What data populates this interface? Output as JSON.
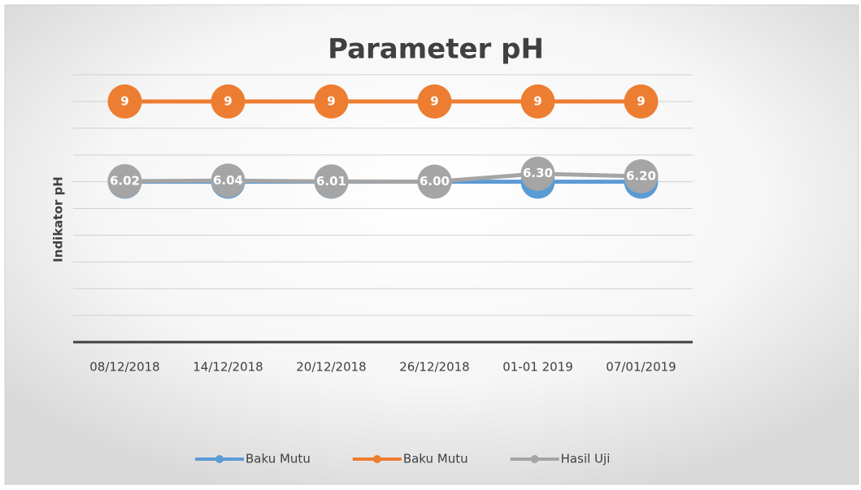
{
  "chart_data": {
    "type": "line",
    "title": "Parameter pH",
    "y_label": "Indikator pH",
    "categories": [
      "08/12/2018",
      "14/12/2018",
      "20/12/2018",
      "26/12/2018",
      "01-01 2019",
      "07/01/2019"
    ],
    "series": [
      {
        "name": "Baku Mutu",
        "color": "#5B9BD5",
        "values": [
          6,
          6,
          6,
          6,
          6,
          6
        ]
      },
      {
        "name": "Baku Mutu",
        "color": "#ED7D31",
        "values": [
          9,
          9,
          9,
          9,
          9,
          9
        ]
      },
      {
        "name": "Hasil Uji",
        "color": "#A5A5A5",
        "values": [
          6.02,
          6.04,
          6.01,
          6.0,
          6.3,
          6.2
        ],
        "value_labels": [
          "6.02",
          "6.04",
          "6.01",
          "6.00",
          "6.30",
          "6.20"
        ]
      }
    ],
    "ylim": [
      0,
      10
    ],
    "yticks": [
      0,
      1,
      2,
      3,
      4,
      5,
      6,
      7,
      8,
      9,
      10
    ],
    "grid": true,
    "legend": "bottom"
  }
}
